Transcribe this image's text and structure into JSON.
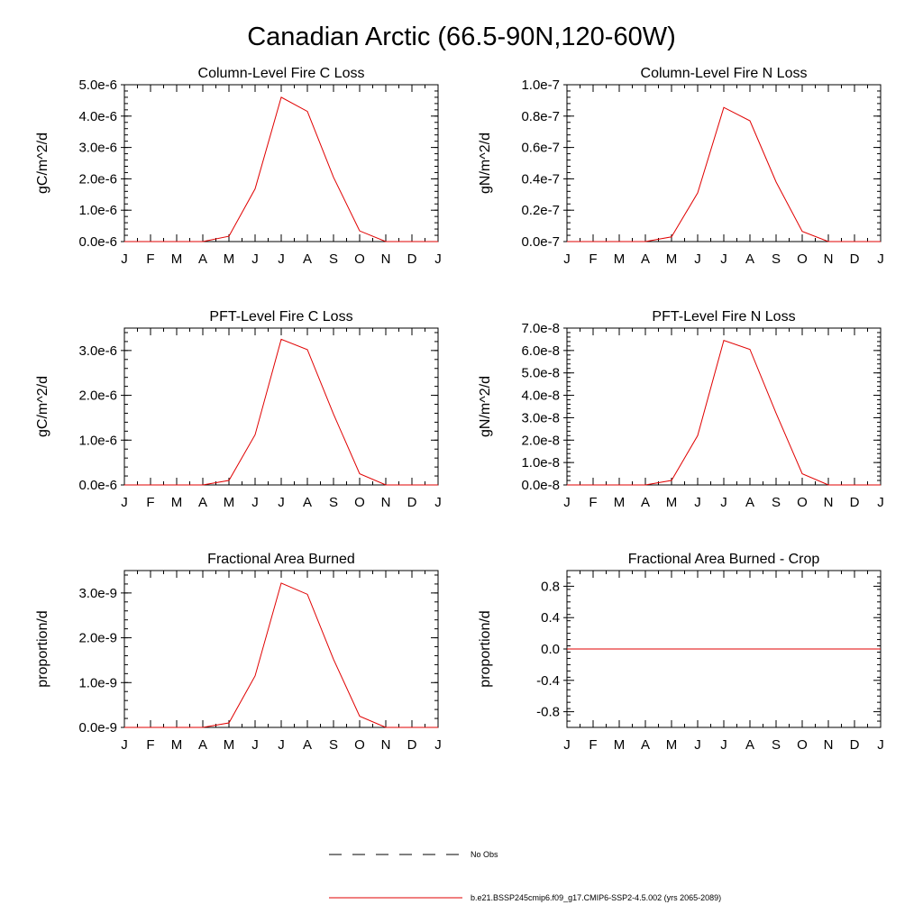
{
  "figure": {
    "title": "Canadian Arctic (66.5-90N,120-60W)"
  },
  "legend": {
    "obs_label": "No Obs",
    "model_label": "b.e21.BSSP245cmip6.f09_g17.CMIP6-SSP2-4.5.002 (yrs 2065-2089)",
    "obs_color": "#000000",
    "model_color": "#e00000"
  },
  "chart_data": [
    {
      "type": "line",
      "title": "Column-Level Fire C Loss",
      "ylabel": "gC/m^2/d",
      "categories": [
        "J",
        "F",
        "M",
        "A",
        "M",
        "J",
        "J",
        "A",
        "S",
        "O",
        "N",
        "D",
        "J"
      ],
      "ylim": [
        0,
        5e-06
      ],
      "yticks": [
        0,
        1e-06,
        2e-06,
        3e-06,
        4e-06,
        5e-06
      ],
      "ytick_labels": [
        "0.0e-6",
        "1.0e-6",
        "2.0e-6",
        "3.0e-6",
        "4.0e-6",
        "5.0e-6"
      ],
      "series": [
        {
          "values": [
            0,
            0,
            0,
            0,
            1.7e-07,
            1.68e-06,
            4.6e-06,
            4.15e-06,
            2.05e-06,
            3.4e-07,
            0,
            0,
            0
          ],
          "color": "#e00000"
        }
      ]
    },
    {
      "type": "line",
      "title": "Column-Level Fire N Loss",
      "ylabel": "gN/m^2/d",
      "categories": [
        "J",
        "F",
        "M",
        "A",
        "M",
        "J",
        "J",
        "A",
        "S",
        "O",
        "N",
        "D",
        "J"
      ],
      "ylim": [
        0,
        1e-07
      ],
      "yticks": [
        0,
        2e-08,
        4e-08,
        6e-08,
        8e-08,
        1e-07
      ],
      "ytick_labels": [
        "0.0e-7",
        "0.2e-7",
        "0.4e-7",
        "0.6e-7",
        "0.8e-7",
        "1.0e-7"
      ],
      "series": [
        {
          "values": [
            0,
            0,
            0,
            0,
            3e-09,
            3.1e-08,
            8.55e-08,
            7.7e-08,
            3.8e-08,
            6.5e-09,
            0,
            0,
            0
          ],
          "color": "#e00000"
        }
      ]
    },
    {
      "type": "line",
      "title": "PFT-Level Fire C Loss",
      "ylabel": "gC/m^2/d",
      "categories": [
        "J",
        "F",
        "M",
        "A",
        "M",
        "J",
        "J",
        "A",
        "S",
        "O",
        "N",
        "D",
        "J"
      ],
      "ylim": [
        0,
        3.5e-06
      ],
      "yticks": [
        0,
        1e-06,
        2e-06,
        3e-06
      ],
      "ytick_labels": [
        "0.0e-6",
        "1.0e-6",
        "2.0e-6",
        "3.0e-6"
      ],
      "series": [
        {
          "values": [
            0,
            0,
            0,
            0,
            1e-07,
            1.12e-06,
            3.25e-06,
            3.02e-06,
            1.58e-06,
            2.5e-07,
            0,
            0,
            0
          ],
          "color": "#e00000"
        }
      ]
    },
    {
      "type": "line",
      "title": "PFT-Level Fire N Loss",
      "ylabel": "gN/m^2/d",
      "categories": [
        "J",
        "F",
        "M",
        "A",
        "M",
        "J",
        "J",
        "A",
        "S",
        "O",
        "N",
        "D",
        "J"
      ],
      "ylim": [
        0,
        7e-08
      ],
      "yticks": [
        0,
        1e-08,
        2e-08,
        3e-08,
        4e-08,
        5e-08,
        6e-08,
        7e-08
      ],
      "ytick_labels": [
        "0.0e-8",
        "1.0e-8",
        "2.0e-8",
        "3.0e-8",
        "4.0e-8",
        "5.0e-8",
        "6.0e-8",
        "7.0e-8"
      ],
      "series": [
        {
          "values": [
            0,
            0,
            0,
            0,
            2e-09,
            2.2e-08,
            6.45e-08,
            6.05e-08,
            3.2e-08,
            5e-09,
            0,
            0,
            0
          ],
          "color": "#e00000"
        }
      ]
    },
    {
      "type": "line",
      "title": "Fractional Area Burned",
      "ylabel": "proportion/d",
      "categories": [
        "J",
        "F",
        "M",
        "A",
        "M",
        "J",
        "J",
        "A",
        "S",
        "O",
        "N",
        "D",
        "J"
      ],
      "ylim": [
        0,
        3.5e-09
      ],
      "yticks": [
        0,
        1e-09,
        2e-09,
        3e-09
      ],
      "ytick_labels": [
        "0.0e-9",
        "1.0e-9",
        "2.0e-9",
        "3.0e-9"
      ],
      "series": [
        {
          "values": [
            0,
            0,
            0,
            0,
            1e-10,
            1.15e-09,
            3.22e-09,
            2.97e-09,
            1.52e-09,
            2.5e-10,
            0,
            0,
            0
          ],
          "color": "#e00000"
        }
      ]
    },
    {
      "type": "line",
      "title": "Fractional Area Burned - Crop",
      "ylabel": "proportion/d",
      "categories": [
        "J",
        "F",
        "M",
        "A",
        "M",
        "J",
        "J",
        "A",
        "S",
        "O",
        "N",
        "D",
        "J"
      ],
      "ylim": [
        -1.0,
        1.0
      ],
      "yticks": [
        -0.8,
        -0.4,
        0.0,
        0.4,
        0.8
      ],
      "ytick_labels": [
        "-0.8",
        "-0.4",
        "0.0",
        "0.4",
        "0.8"
      ],
      "series": [
        {
          "values": [
            0,
            0,
            0,
            0,
            0,
            0,
            0,
            0,
            0,
            0,
            0,
            0,
            0
          ],
          "color": "#e00000"
        }
      ]
    }
  ]
}
